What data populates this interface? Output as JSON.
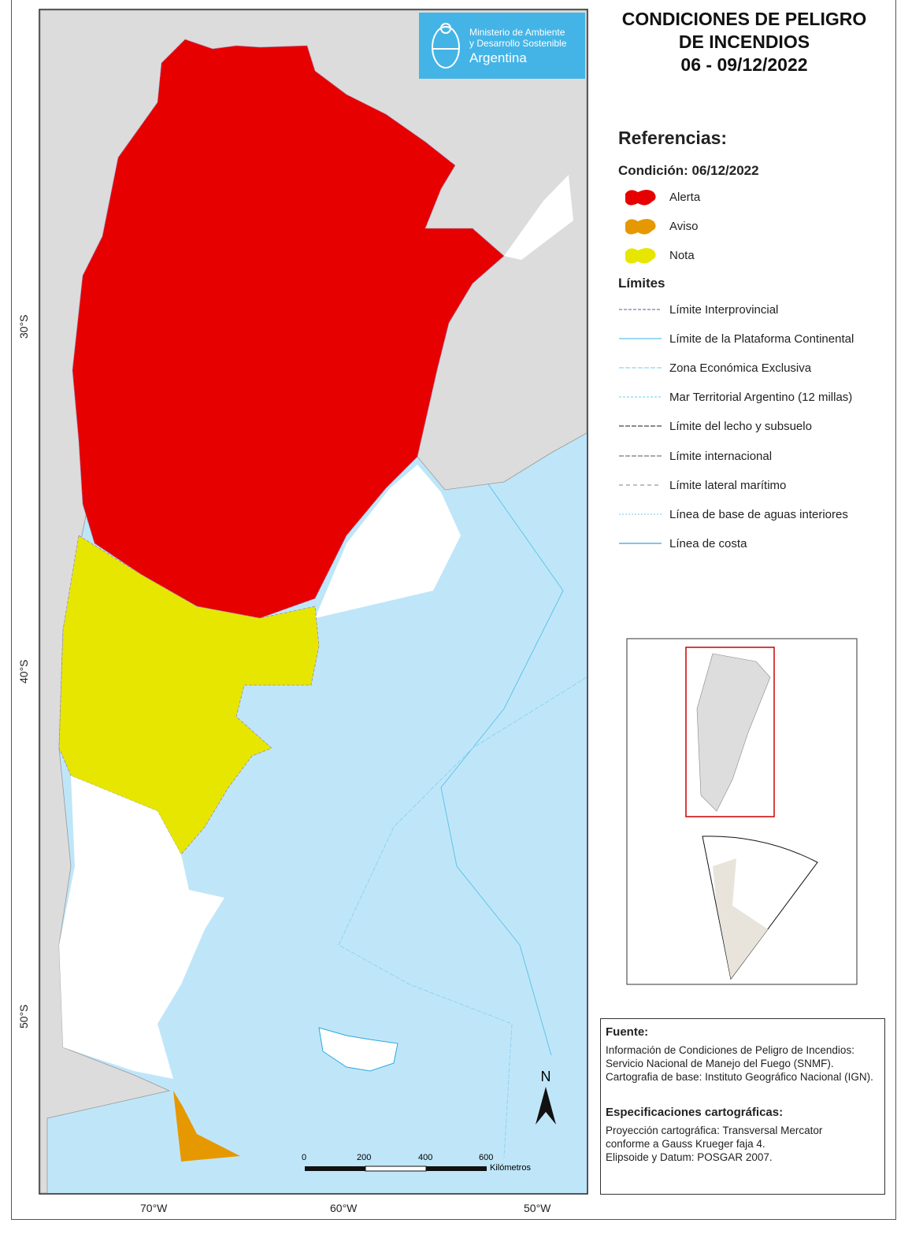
{
  "title": {
    "line1": "CONDICIONES DE PELIGRO",
    "line2": "DE INCENDIOS",
    "line3": "06 - 09/12/2022"
  },
  "logo": {
    "line1": "Ministerio de Ambiente",
    "line2": "y Desarrollo Sostenible",
    "line3": "Argentina",
    "color": "#44b4e6"
  },
  "legend": {
    "heading": "Referencias:",
    "condition_heading": "Condición: 06/12/2022",
    "conditions": [
      {
        "label": "Alerta",
        "color": "#e60000"
      },
      {
        "label": "Aviso",
        "color": "#e69800"
      },
      {
        "label": "Nota",
        "color": "#e6e600"
      }
    ],
    "limits_heading": "Límites",
    "limits": [
      {
        "label": "Límite Interprovincial",
        "color": "#8a70b0",
        "dash": "4 2"
      },
      {
        "label": "Límite de la Plataforma Continental",
        "color": "#5fc4ea",
        "dash": ""
      },
      {
        "label": "Zona Económica Exclusiva",
        "color": "#8fd3f0",
        "dash": "6 2"
      },
      {
        "label": "Mar Territorial Argentino (12 millas)",
        "color": "#8fd3f0",
        "dash": "3 2"
      },
      {
        "label": "Límite del lecho y subsuelo",
        "color": "#444444",
        "dash": "6 2"
      },
      {
        "label": "Límite internacional",
        "color": "#777777",
        "dash": "6 2"
      },
      {
        "label": "Límite lateral marítimo",
        "color": "#999999",
        "dash": "5 4"
      },
      {
        "label": "Línea de base de aguas interiores",
        "color": "#8fd3f0",
        "dash": "2 2"
      },
      {
        "label": "Línea de costa",
        "color": "#2aa8e0",
        "dash": ""
      }
    ]
  },
  "axes": {
    "lat_labels": [
      "30°S",
      "40°S",
      "50°S"
    ],
    "lon_labels": [
      "70°W",
      "60°W",
      "50°W"
    ]
  },
  "scale": {
    "ticks": [
      "0",
      "200",
      "400",
      "600"
    ],
    "unit": "Kilómetros"
  },
  "north": "N",
  "source": {
    "heading": "Fuente:",
    "text1": "Información de Condiciones de Peligro de Incendios: Servicio Nacional de Manejo del Fuego (SNMF).",
    "text2": "Cartografia de base: Instituto Geográfico Nacional (IGN).",
    "spec_heading": "Especificaciones cartográficas:",
    "spec1": "Proyección cartográfica: Transversal Mercator",
    "spec2": "conforme a Gauss Krueger faja 4.",
    "spec3": "Elipsoide y Datum: POSGAR 2007."
  },
  "colors": {
    "ocean": "#bfe6f8",
    "land": "#dcdcdc",
    "unclassified": "#ffffff"
  }
}
